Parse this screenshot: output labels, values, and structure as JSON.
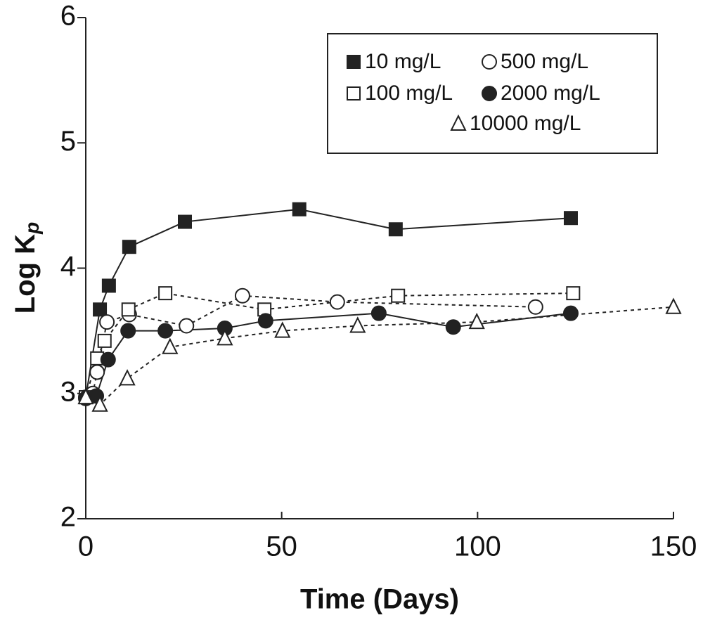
{
  "chart_data": {
    "type": "line",
    "x_label": "Time (Days)",
    "y_label": "Log K",
    "y_label_subscript": "p",
    "xlim": [
      0,
      150
    ],
    "xticks": [
      0,
      50,
      100,
      150
    ],
    "ylim": [
      2,
      6
    ],
    "yticks": [
      2,
      3,
      4,
      5,
      6
    ],
    "legend": "upper right",
    "series": [
      {
        "name": "10 mg/L",
        "color": "#222222",
        "marker": "square",
        "filled": true,
        "linestyle": "solid",
        "x": [
          0,
          3.6,
          5.9,
          11.1,
          25.3,
          54.5,
          79.1,
          123.8
        ],
        "values": [
          2.97,
          3.67,
          3.86,
          4.17,
          4.37,
          4.47,
          4.31,
          4.4
        ]
      },
      {
        "name": "500 mg/L",
        "color": "#222222",
        "marker": "circle",
        "filled": false,
        "linestyle": "dashed",
        "x": [
          0,
          1.8,
          2.9,
          5.4,
          11.1,
          25.7,
          40,
          64.2,
          114.8
        ],
        "values": [
          2.97,
          3.0,
          3.17,
          3.57,
          3.63,
          3.54,
          3.78,
          3.73,
          3.69
        ]
      },
      {
        "name": "100 mg/L",
        "color": "#222222",
        "marker": "square",
        "filled": false,
        "linestyle": "dashed",
        "x": [
          0,
          2.9,
          4.8,
          10.9,
          20.3,
          45.6,
          79.7,
          124.4
        ],
        "values": [
          2.97,
          3.28,
          3.42,
          3.67,
          3.8,
          3.67,
          3.78,
          3.8
        ]
      },
      {
        "name": "2000 mg/L",
        "color": "#222222",
        "marker": "circle",
        "filled": true,
        "linestyle": "solid",
        "x": [
          0,
          2.7,
          5.7,
          10.8,
          20.3,
          35.5,
          45.9,
          74.8,
          93.8,
          123.8
        ],
        "values": [
          2.96,
          2.98,
          3.27,
          3.5,
          3.5,
          3.52,
          3.58,
          3.64,
          3.53,
          3.64
        ]
      },
      {
        "name": "10000 mg/L",
        "color": "#222222",
        "marker": "triangle",
        "filled": false,
        "linestyle": "dashed",
        "x": [
          0,
          3.6,
          10.6,
          21.5,
          35.5,
          50.2,
          69.4,
          99.8,
          150
        ],
        "values": [
          2.97,
          2.91,
          3.12,
          3.37,
          3.44,
          3.5,
          3.54,
          3.57,
          3.69
        ]
      }
    ]
  }
}
